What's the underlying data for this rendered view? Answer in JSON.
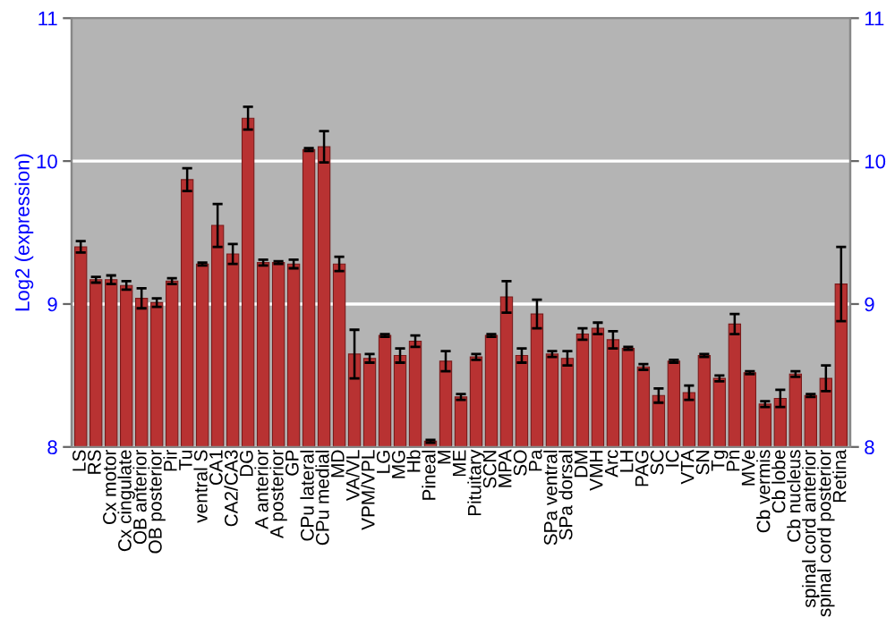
{
  "chart_data": {
    "type": "bar",
    "ylabel": "Log2 (expression)",
    "categories": [
      "LS",
      "RS",
      "Cx motor",
      "Cx cingulate",
      "OB anterior",
      "OB posterior",
      "Pir",
      "Tu",
      "ventral S",
      "CA1",
      "CA2/CA3",
      "DG",
      "A anterior",
      "A posterior",
      "GP",
      "CPu lateral",
      "CPu medial",
      "MD",
      "VA/VL",
      "VPM/VPL",
      "LG",
      "MG",
      "Hb",
      "Pineal",
      "M",
      "ME",
      "Pituitary",
      "SCN",
      "MPA",
      "SO",
      "Pa",
      "SPa ventral",
      "SPa dorsal",
      "DM",
      "VMH",
      "Arc",
      "LH",
      "PAG",
      "SC",
      "IC",
      "VTA",
      "SN",
      "Tg",
      "Pn",
      "MVe",
      "Cb vermis",
      "Cb lobe",
      "Cb nucleus",
      "spinal cord anterior",
      "spinal cord posterior",
      "Retina"
    ],
    "series": [
      {
        "color": "#b83232",
        "values": [
          9.4,
          9.17,
          9.17,
          9.13,
          9.04,
          9.01,
          9.16,
          9.87,
          9.28,
          9.55,
          9.35,
          10.3,
          9.29,
          9.29,
          9.28,
          10.08,
          10.1,
          9.28,
          8.65,
          8.62,
          8.78,
          8.64,
          8.74,
          8.04,
          8.6,
          8.35,
          8.63,
          8.78,
          9.05,
          8.64,
          8.93,
          8.65,
          8.62,
          8.79,
          8.83,
          8.75,
          8.69,
          8.56,
          8.36,
          8.6,
          8.38,
          8.64,
          8.48,
          8.86,
          8.52,
          8.3,
          8.34,
          8.51,
          8.36,
          8.48,
          9.14
        ],
        "errors": [
          0.04,
          0.02,
          0.03,
          0.03,
          0.07,
          0.03,
          0.02,
          0.08,
          0.01,
          0.15,
          0.07,
          0.08,
          0.02,
          0.01,
          0.03,
          0.01,
          0.11,
          0.05,
          0.17,
          0.03,
          0.01,
          0.05,
          0.04,
          0.01,
          0.07,
          0.02,
          0.02,
          0.01,
          0.11,
          0.05,
          0.1,
          0.02,
          0.05,
          0.04,
          0.04,
          0.06,
          0.01,
          0.02,
          0.05,
          0.01,
          0.05,
          0.01,
          0.02,
          0.07,
          0.01,
          0.02,
          0.06,
          0.02,
          0.01,
          0.09,
          0.26
        ]
      }
    ],
    "ylim": [
      8,
      11
    ],
    "yticks": [
      8,
      9,
      10,
      11
    ],
    "y2lim": [
      8,
      11
    ],
    "y2ticks": [
      8,
      9,
      10,
      11
    ],
    "grid": "y"
  }
}
